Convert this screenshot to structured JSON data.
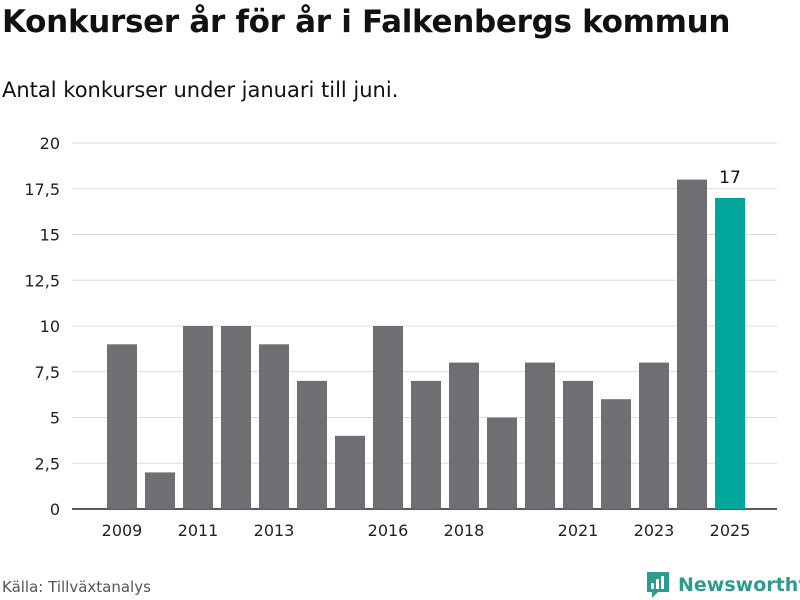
{
  "title": "Konkurser år för år i Falkenbergs kommun",
  "subtitle": "Antal konkurser under januari till juni.",
  "source": "Källa: Tillväxtanalys",
  "brand": "Newsworthy",
  "colors": {
    "bar": "#6f6e73",
    "highlight": "#00a59b",
    "grid": "#dddddd",
    "brand": "#2e9b93"
  },
  "chart_data": {
    "type": "bar",
    "title": "Konkurser år för år i Falkenbergs kommun",
    "subtitle": "Antal konkurser under januari till juni.",
    "xlabel": "",
    "ylabel": "",
    "categories": [
      "2009",
      "2010",
      "2011",
      "2012",
      "2013",
      "2014",
      "2015",
      "2016",
      "2017",
      "2018",
      "2019",
      "2020",
      "2021",
      "2022",
      "2023",
      "2024",
      "2025"
    ],
    "values": [
      9,
      2,
      10,
      10,
      9,
      7,
      4,
      10,
      7,
      8,
      5,
      8,
      7,
      6,
      8,
      18,
      17
    ],
    "x_tick_labels": [
      "2009",
      "2011",
      "2013",
      "2016",
      "2018",
      "2021",
      "2023",
      "2025"
    ],
    "y_ticks": [
      0,
      2.5,
      5,
      7.5,
      10,
      12.5,
      15,
      17.5,
      20
    ],
    "y_tick_labels": [
      "0",
      "2,5",
      "5",
      "7,5",
      "10",
      "12,5",
      "15",
      "17,5",
      "20"
    ],
    "ylim": [
      0,
      20
    ],
    "grid": true,
    "highlight_category": "2025",
    "highlight_label": "17"
  }
}
